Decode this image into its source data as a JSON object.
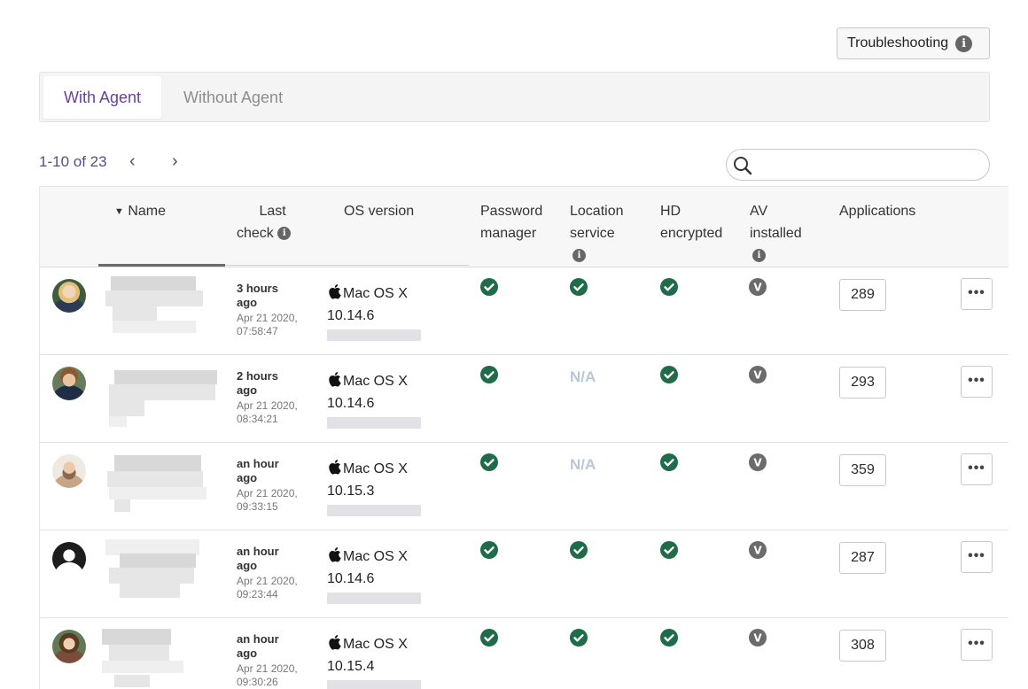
{
  "toolbar": {
    "troubleshooting_label": "Troubleshooting"
  },
  "tabs": [
    {
      "label": "With Agent",
      "active": true
    },
    {
      "label": "Without Agent",
      "active": false
    }
  ],
  "pagination": {
    "range_label": "1-10 of 23",
    "prev": "‹",
    "next": "›"
  },
  "search": {
    "placeholder": ""
  },
  "table": {
    "headers": {
      "name": "Name",
      "last_check_1": "Last",
      "last_check_2": "check",
      "os_version": "OS version",
      "password_manager_1": "Password",
      "password_manager_2": "manager",
      "location_service_1": "Location",
      "location_service_2": "service",
      "hd_encrypted_1": "HD",
      "hd_encrypted_2": "encrypted",
      "av_installed_1": "AV",
      "av_installed_2": "installed",
      "applications": "Applications"
    },
    "rows": [
      {
        "last_check_rel_1": "3 hours",
        "last_check_rel_2": "ago",
        "last_check_date_1": "Apr 21 2020,",
        "last_check_date_2": "07:58:47",
        "os_name": "Mac OS X",
        "os_version": "10.14.6",
        "password_manager": "ok",
        "location_service": "ok",
        "location_service_text": "",
        "hd_encrypted": "ok",
        "av_installed": "V",
        "applications": "289",
        "more": "•••"
      },
      {
        "last_check_rel_1": "2 hours",
        "last_check_rel_2": "ago",
        "last_check_date_1": "Apr 21 2020,",
        "last_check_date_2": "08:34:21",
        "os_name": "Mac OS X",
        "os_version": "10.14.6",
        "password_manager": "ok",
        "location_service": "na",
        "location_service_text": "N/A",
        "hd_encrypted": "ok",
        "av_installed": "V",
        "applications": "293",
        "more": "•••"
      },
      {
        "last_check_rel_1": "an hour",
        "last_check_rel_2": "ago",
        "last_check_date_1": "Apr 21 2020,",
        "last_check_date_2": "09:33:15",
        "os_name": "Mac OS X",
        "os_version": "10.15.3",
        "password_manager": "ok",
        "location_service": "na",
        "location_service_text": "N/A",
        "hd_encrypted": "ok",
        "av_installed": "V",
        "applications": "359",
        "more": "•••"
      },
      {
        "last_check_rel_1": "an hour",
        "last_check_rel_2": "ago",
        "last_check_date_1": "Apr 21 2020,",
        "last_check_date_2": "09:23:44",
        "os_name": "Mac OS X",
        "os_version": "10.14.6",
        "password_manager": "ok",
        "location_service": "ok",
        "location_service_text": "",
        "hd_encrypted": "ok",
        "av_installed": "V",
        "applications": "287",
        "more": "•••"
      },
      {
        "last_check_rel_1": "an hour",
        "last_check_rel_2": "ago",
        "last_check_date_1": "Apr 21 2020,",
        "last_check_date_2": "09:30:26",
        "os_name": "Mac OS X",
        "os_version": "10.15.4",
        "password_manager": "ok",
        "location_service": "ok",
        "location_service_text": "",
        "hd_encrypted": "ok",
        "av_installed": "V",
        "applications": "308",
        "more": "•••"
      }
    ]
  },
  "colors": {
    "accent": "#6b3fa0",
    "ok_green": "#1f6b4a",
    "na_gray": "#b9c8d4",
    "av_gray": "#6b6b6b"
  }
}
